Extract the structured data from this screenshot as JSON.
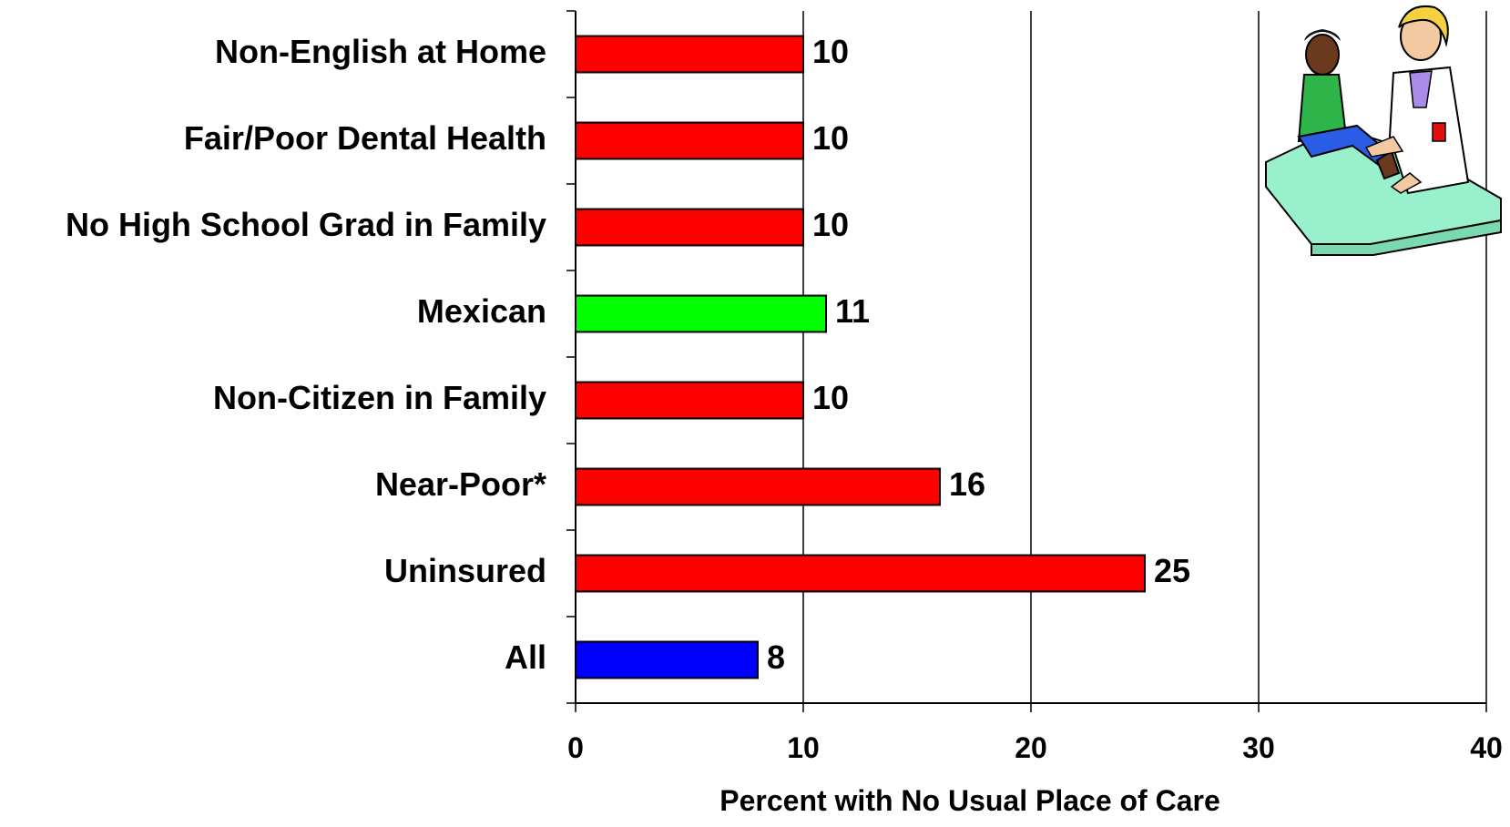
{
  "chart_data": {
    "type": "bar",
    "orientation": "horizontal",
    "categories": [
      "Non-English at Home",
      "Fair/Poor Dental Health",
      "No High School Grad in Family",
      "Mexican",
      "Non-Citizen in Family",
      "Near-Poor*",
      "Uninsured",
      "All"
    ],
    "values": [
      10,
      10,
      10,
      11,
      10,
      16,
      25,
      8
    ],
    "bar_colors": [
      "#ff0000",
      "#ff0000",
      "#ff0000",
      "#00ff00",
      "#ff0000",
      "#ff0000",
      "#ff0000",
      "#0000ff"
    ],
    "data_labels": [
      "10",
      "10",
      "10",
      "11",
      "10",
      "16",
      "25",
      "8"
    ],
    "xlabel": "Percent with No Usual Place of Care",
    "xlim": [
      0,
      40
    ],
    "xticks": [
      "0",
      "10",
      "20",
      "30",
      "40"
    ],
    "grid": "vertical gridlines at major ticks",
    "decoration": "clip-art of a doctor examining a child seated on an exam table, top-right"
  }
}
